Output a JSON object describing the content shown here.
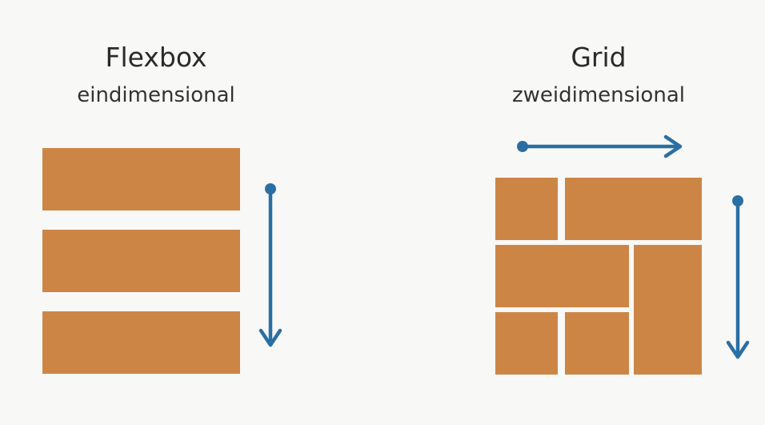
{
  "colors": {
    "block": "#cd8546",
    "arrow": "#2a6fa3",
    "background": "#f8f8f7"
  },
  "flexbox": {
    "title": "Flexbox",
    "subtitle": "eindimensional"
  },
  "grid": {
    "title": "Grid",
    "subtitle": "zweidimensional"
  }
}
